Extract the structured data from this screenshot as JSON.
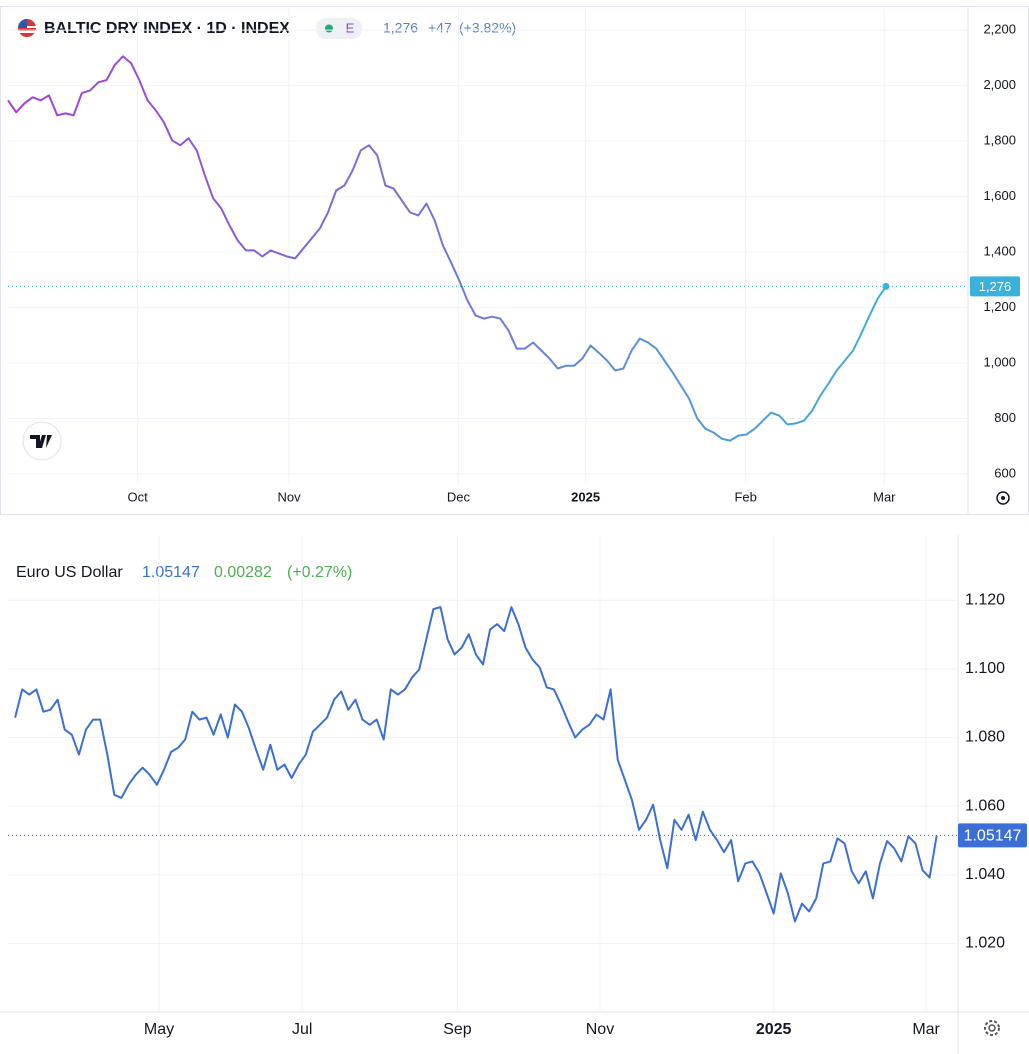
{
  "chart_data": [
    {
      "type": "line",
      "title": "BALTIC DRY INDEX · 1D · INDEX",
      "badge": "E",
      "last": "1,276",
      "change": "+47",
      "change_pct": "(+3.82%)",
      "colors": [
        "#a63fd6",
        "#3ab0dc"
      ],
      "grid": true,
      "values": [
        1947,
        1904,
        1936,
        1958,
        1947,
        1965,
        1893,
        1900,
        1893,
        1973,
        1983,
        2012,
        2020,
        2074,
        2106,
        2081,
        2020,
        1947,
        1911,
        1868,
        1803,
        1785,
        1810,
        1767,
        1676,
        1594,
        1557,
        1496,
        1442,
        1406,
        1406,
        1384,
        1406,
        1395,
        1384,
        1377,
        1413,
        1449,
        1485,
        1543,
        1622,
        1640,
        1694,
        1767,
        1785,
        1749,
        1640,
        1629,
        1586,
        1543,
        1532,
        1575,
        1514,
        1424,
        1362,
        1297,
        1225,
        1171,
        1160,
        1167,
        1160,
        1117,
        1052,
        1052,
        1074,
        1045,
        1016,
        980,
        990,
        990,
        1016,
        1063,
        1037,
        1009,
        973,
        980,
        1045,
        1088,
        1074,
        1052,
        1009,
        966,
        919,
        872,
        800,
        763,
        749,
        727,
        720,
        738,
        742,
        763,
        792,
        821,
        810,
        778,
        782,
        792,
        828,
        882,
        926,
        973,
        1009,
        1045,
        1106,
        1171,
        1232,
        1276
      ],
      "xlim": [
        0,
        117
      ],
      "xticks": [
        {
          "value": 15.8,
          "label": "Oct"
        },
        {
          "value": 34.25,
          "label": "Nov"
        },
        {
          "value": 54.9,
          "label": "Dec"
        },
        {
          "value": 70.4,
          "label": "2025"
        },
        {
          "value": 89.9,
          "label": "Feb"
        },
        {
          "value": 106.8,
          "label": "Mar"
        }
      ],
      "ylim": [
        560,
        2280
      ],
      "yticks": [
        {
          "value": 600,
          "label": "600"
        },
        {
          "value": 800,
          "label": "800"
        },
        {
          "value": 1000,
          "label": "1,000"
        },
        {
          "value": 1200,
          "label": "1,200"
        },
        {
          "value": 1400,
          "label": "1,400"
        },
        {
          "value": 1600,
          "label": "1,600"
        },
        {
          "value": 1800,
          "label": "1,800"
        },
        {
          "value": 2000,
          "label": "2,000"
        },
        {
          "value": 2200,
          "label": "2,200"
        }
      ]
    },
    {
      "type": "line",
      "title": "Euro US Dollar",
      "last": "1.05147",
      "change": "0.00282",
      "change_pct": "(+0.27%)",
      "colors": [
        "#3b6fd6",
        "#3b6fd6"
      ],
      "grid": true,
      "values": [
        1.0858,
        1.094,
        1.0925,
        1.094,
        1.0875,
        1.0881,
        1.091,
        1.0823,
        1.0808,
        1.075,
        1.0823,
        1.0852,
        1.0852,
        1.075,
        1.0633,
        1.0624,
        1.0662,
        1.0691,
        1.0712,
        1.0691,
        1.0662,
        1.0706,
        1.0758,
        1.077,
        1.0794,
        1.0875,
        1.0852,
        1.0858,
        1.0808,
        1.0867,
        1.08,
        1.0896,
        1.0875,
        1.0826,
        1.0764,
        1.0706,
        1.0779,
        1.0706,
        1.0721,
        1.0682,
        1.0721,
        1.075,
        1.0817,
        1.0837,
        1.0858,
        1.091,
        1.0934,
        1.0881,
        1.091,
        1.0852,
        1.0837,
        1.0852,
        1.0794,
        1.094,
        1.0925,
        1.094,
        1.0975,
        1.0998,
        1.1086,
        1.1174,
        1.118,
        1.1086,
        1.1042,
        1.1062,
        1.1101,
        1.1042,
        1.1013,
        1.1115,
        1.113,
        1.111,
        1.118,
        1.113,
        1.1062,
        1.1027,
        1.1004,
        1.0946,
        1.094,
        1.0896,
        1.0846,
        1.08,
        1.0823,
        1.0837,
        1.0867,
        1.0852,
        1.094,
        1.0735,
        1.0677,
        1.0618,
        1.0531,
        1.056,
        1.0604,
        1.0501,
        1.0419,
        1.056,
        1.0531,
        1.0575,
        1.0501,
        1.0584,
        1.0531,
        1.0501,
        1.0466,
        1.0501,
        1.0381,
        1.0433,
        1.0439,
        1.0404,
        1.0346,
        1.0287,
        1.0404,
        1.0346,
        1.0264,
        1.0316,
        1.0293,
        1.0331,
        1.0433,
        1.0439,
        1.0506,
        1.0491,
        1.041,
        1.0375,
        1.041,
        1.0331,
        1.0433,
        1.0498,
        1.0477,
        1.0439,
        1.0512,
        1.0491,
        1.0413,
        1.0392,
        1.05147
      ],
      "xlim": [
        -1,
        133
      ],
      "xticks": [
        {
          "value": 20.3,
          "label": "May"
        },
        {
          "value": 40.5,
          "label": "Jul"
        },
        {
          "value": 62.4,
          "label": "Sep"
        },
        {
          "value": 82.5,
          "label": "Nov"
        },
        {
          "value": 107,
          "label": "2025"
        },
        {
          "value": 128.5,
          "label": "Mar"
        }
      ],
      "ylim": [
        1.0,
        1.139
      ],
      "yticks": [
        {
          "value": 1.02,
          "label": "1.020"
        },
        {
          "value": 1.04,
          "label": "1.040"
        },
        {
          "value": 1.06,
          "label": "1.060"
        },
        {
          "value": 1.08,
          "label": "1.080"
        },
        {
          "value": 1.1,
          "label": "1.100"
        },
        {
          "value": 1.12,
          "label": "1.120"
        }
      ]
    }
  ]
}
